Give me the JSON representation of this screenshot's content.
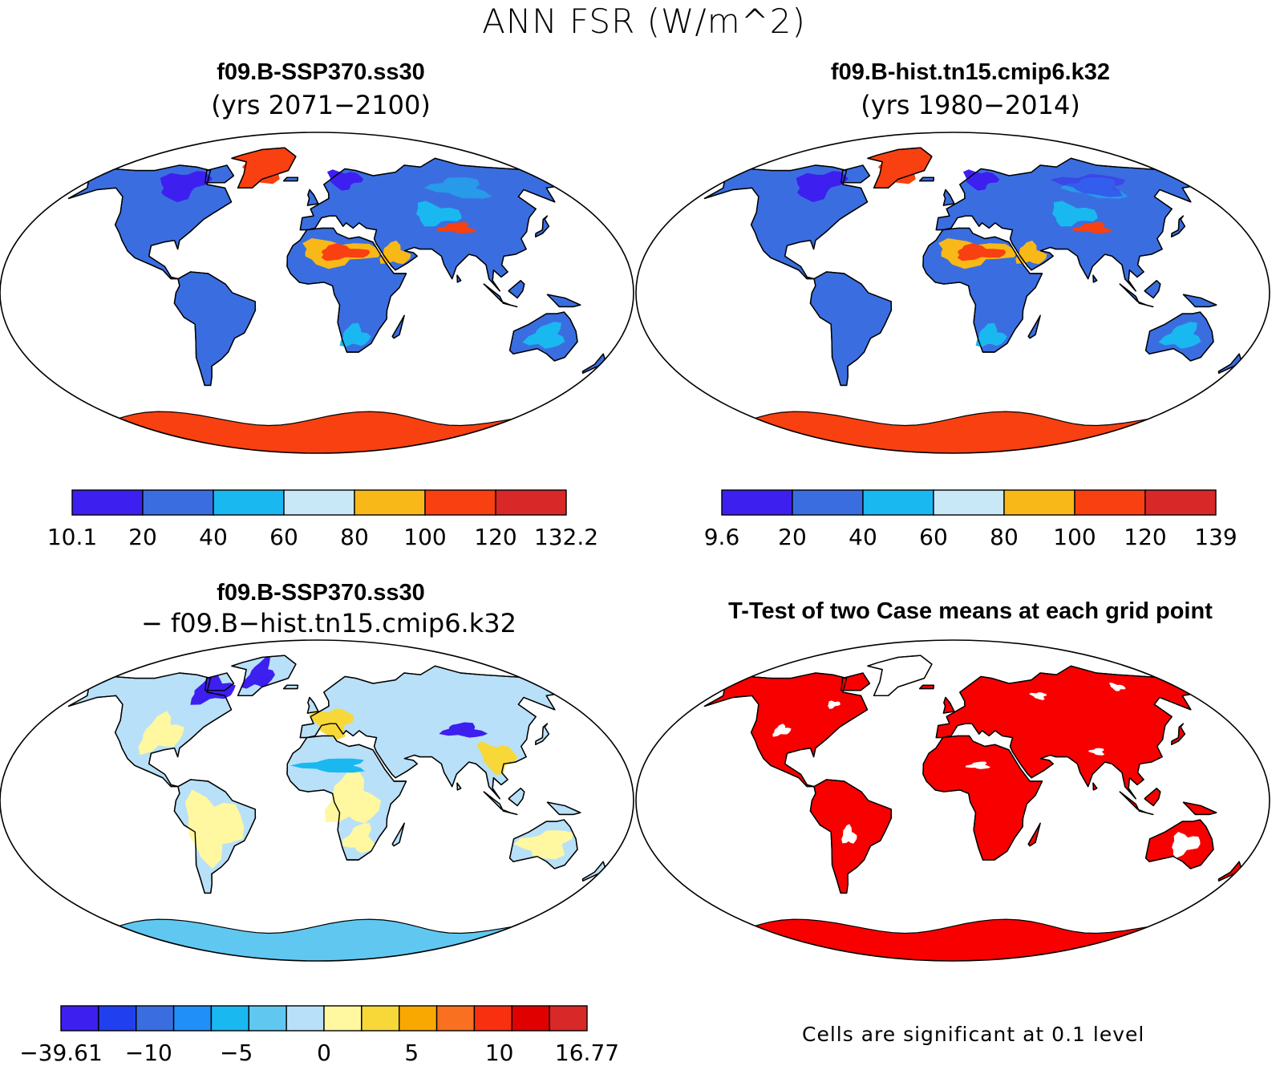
{
  "title": "ANN FSR (W/m^2)",
  "panels": [
    {
      "id": "future",
      "title": "f09.B-SSP370.ss30",
      "subtitle": "(yrs 2071−2100)"
    },
    {
      "id": "hist",
      "title": "f09.B-hist.tn15.cmip6.k32",
      "subtitle": "(yrs 1980−2014)"
    },
    {
      "id": "diff",
      "title": "f09.B-SSP370.ss30",
      "subtitle": "− f09.B−hist.tn15.cmip6.k32"
    },
    {
      "id": "ttest",
      "title": "T-Test of two Case means at each grid point"
    }
  ],
  "colorbars": [
    {
      "id": "future",
      "labels": [
        "10.1",
        "20",
        "40",
        "60",
        "80",
        "100",
        "120",
        "132.2"
      ],
      "colors": [
        "#3d1ff0",
        "#3a6ee0",
        "#1ab8f0",
        "#c8e8f8",
        "#f8b818",
        "#f84010",
        "#d82828"
      ]
    },
    {
      "id": "hist",
      "labels": [
        "9.6",
        "20",
        "40",
        "60",
        "80",
        "100",
        "120",
        "139"
      ],
      "colors": [
        "#3d1ff0",
        "#3a6ee0",
        "#1ab8f0",
        "#c8e8f8",
        "#f8b818",
        "#f84010",
        "#d82828"
      ]
    },
    {
      "id": "diff",
      "labels": [
        "−39.61",
        "−10",
        "−5",
        "0",
        "5",
        "10",
        "16.77"
      ],
      "colors": [
        "#3d1ff0",
        "#2040f0",
        "#3a6ee0",
        "#2090f8",
        "#1ab8f0",
        "#60c8f0",
        "#b8e0f8",
        "#fff8a0",
        "#f8d838",
        "#f8a800",
        "#f87020",
        "#f83010",
        "#e00000",
        "#d82828"
      ]
    }
  ],
  "map_colors": {
    "ocean": "#ffffff",
    "land_future": "#3a6ee0",
    "land_hist": "#3a6ee0",
    "land_diff": "#b8e0f8",
    "land_ttest": "#f80000",
    "desert": "#f8b818",
    "desert_core": "#f84010",
    "greenland": "#f84010",
    "antarctica": "#f84010",
    "antarctica_hist": "#f84010",
    "antarctica_diff": "#60c8f0",
    "cold_spot": "#3d1ff0",
    "mid_spot": "#1ab8f0",
    "warm_diff": "#fff8a0",
    "gold_diff": "#f8d838",
    "white_spot": "#ffffff"
  },
  "note": "Cells are significant at 0.1 level"
}
